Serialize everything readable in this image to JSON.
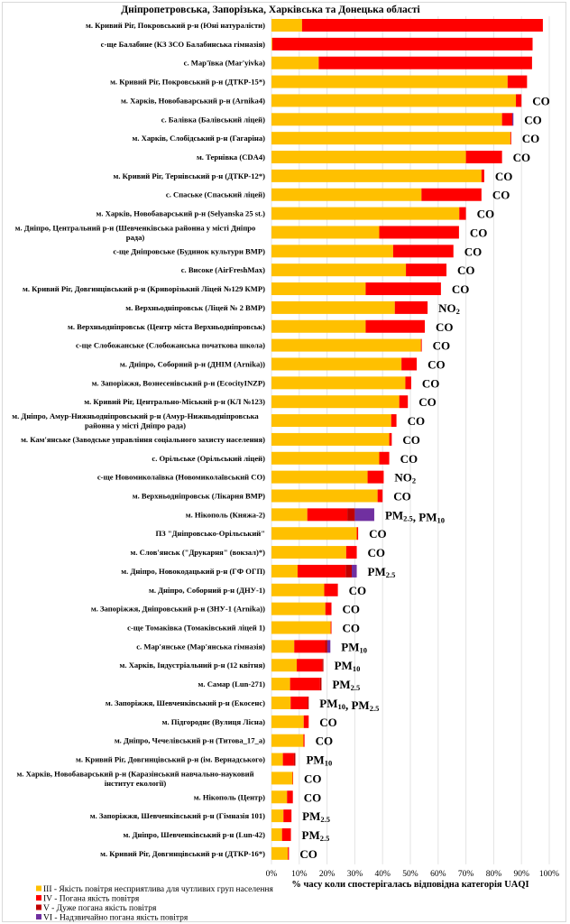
{
  "chart_data": {
    "type": "bar",
    "orientation": "horizontal",
    "stacked": true,
    "title": "Дніпропетровська, Запорізька, Харківська та Донецька області",
    "xlabel": "% часу коли спостерігалась відповідна категорія UAQI",
    "ylabel": "",
    "xlim": [
      0,
      100
    ],
    "x_ticks": [
      "0%",
      "10%",
      "20%",
      "30%",
      "40%",
      "50%",
      "60%",
      "70%",
      "80%",
      "90%",
      "100%"
    ],
    "grid": true,
    "legend_position": "bottom-left",
    "categories": [
      "м. Кривий Ріг, Покровський р-н (Юні натуралісти)",
      "с-ще Балабине (КЗ ЗСО Балабинська гімназія)",
      "с. Мар'ївка (Mar'yivka)",
      "м. Кривий Ріг, Покровський р-н (ДТКР-15*)",
      "м. Харків, Новобаварський р-н (Arnika4)",
      "с. Балівка (Балівський ліцей)",
      "м. Харків, Слобідський р-н (Гагаріна)",
      "м. Тернівка (CDA4)",
      "м. Кривий Ріг, Тернівський р-н (ДТКР-12*)",
      "с. Спаське (Спаський ліцей)",
      "м. Харків, Новобаварський р-н (Selyanska 25 st.)",
      "м. Дніпро, Центральний р-н (Шевченківська районна у місті Дніпро рада)",
      "с-ще Дніпровське (Будинок культури ВМР)",
      "с. Високе (AirFreshMax)",
      "м. Кривий Ріг, Довгинцівський р-н (Криворізький Ліцей №129 КМР)",
      "м. Верхньодніпровськ (Ліцей № 2 ВМР)",
      "м. Верхньодніпровськ (Центр міста Верхньодніпровськ)",
      "с-ще Слобожанське (Слобожанська початкова школа)",
      "м. Дніпро, Соборний р-н (ДНІМ (Arnika))",
      "м. Запоріжжя, Вознесенівський р-н (EcocityINZP)",
      "м. Кривий Ріг, Центрально-Міський р-н (КЛ №123)",
      "м. Дніпро, Амур-Нижньодніпровський р-н (Амур-Нижньодніпровська районна у місті Дніпро рада)",
      "м. Кам'янське (Заводське управління соціального захисту населення)",
      "с. Орільське (Орільський ліцей)",
      "с-ще Новомиколаївка (Новомиколаївський СО)",
      "м. Верхньодніпровськ (Лікарня ВМР)",
      "м. Нікополь (Княжа-2)",
      "ПЗ \"Дніпровсько-Орільський\"",
      "м. Слов'янськ (\"Друкарня\" (вокзал)*)",
      "м. Дніпро, Новокодацький р-н (ГФ ОГП)",
      "м. Дніпро, Соборний р-н (ДНУ-1)",
      "м. Запоріжжя, Дніпровський р-н (ЗНУ-1 (Arnika))",
      "с-ще Томаківка (Томаківський ліцей 1)",
      "с. Мар'янське (Мар'янська гімназія)",
      "м. Харків, Індустріальний р-н (12 квітня)",
      "м. Самар (Lun-271)",
      "м. Запоріжжя, Шевченківський р-н (Екосенс)",
      "м. Підгороднє (Вулиця Лісна)",
      "м. Дніпро, Чечелівський р-н (Титова_17_а)",
      "м. Кривий Ріг, Довгинцівський р-н (ім. Вернадського)",
      "м. Харків, Новобаварський р-н (Каразінський навчально-науковий інститут екології)",
      "м. Нікополь (Центр)",
      "м. Запоріжжя, Шевченківський р-н (Гімназія 101)",
      "м. Дніпро, Шевченківський р-н (Lun-42)",
      "м. Кривий Ріг, Довгинцівський р-н (ДТКР-16*)"
    ],
    "category_lines": [
      [
        "м. Кривий Ріг, Покровський р-н (Юні натуралісти)"
      ],
      [
        "с-ще Балабине (КЗ ЗСО Балабинська гімназія)"
      ],
      [
        "с. Мар'ївка (Mar'yivka)"
      ],
      [
        "м. Кривий Ріг, Покровський р-н (ДТКР-15*)"
      ],
      [
        "м. Харків, Новобаварський р-н (Arnika4)"
      ],
      [
        "с. Балівка (Балівський ліцей)"
      ],
      [
        "м. Харків, Слобідський р-н (Гагаріна)"
      ],
      [
        "м. Тернівка (CDA4)"
      ],
      [
        "м. Кривий Ріг, Тернівський р-н (ДТКР-12*)"
      ],
      [
        "с. Спаське (Спаський ліцей)"
      ],
      [
        "м. Харків, Новобаварський р-н (Selyanska 25 st.)"
      ],
      [
        "м. Дніпро, Центральний р-н (Шевченківська районна у місті Дніпро",
        "рада)"
      ],
      [
        "с-ще Дніпровське (Будинок культури ВМР)"
      ],
      [
        "с. Високе (AirFreshMax)"
      ],
      [
        "м. Кривий Ріг, Довгинцівський р-н (Криворізький Ліцей №129 КМР)"
      ],
      [
        "м. Верхньодніпровськ (Ліцей № 2 ВМР)"
      ],
      [
        "м. Верхньодніпровськ (Центр міста Верхньодніпровськ)"
      ],
      [
        "с-ще Слобожанське (Слобожанська початкова школа)"
      ],
      [
        "м. Дніпро, Соборний р-н (ДНІМ (Arnika))"
      ],
      [
        "м. Запоріжжя, Вознесенівський р-н (EcocityINZP)"
      ],
      [
        "м. Кривий Ріг, Центрально-Міський р-н (КЛ №123)"
      ],
      [
        "м. Дніпро, Амур-Нижньодніпровський р-н (Амур-Нижньодніпровська",
        "районна у місті Дніпро рада)"
      ],
      [
        "м. Кам'янське (Заводське управління соціального захисту населення)"
      ],
      [
        "с. Орільське (Орільський ліцей)"
      ],
      [
        "с-ще Новомиколаївка (Новомиколаївський СО)"
      ],
      [
        "м. Верхньодніпровськ (Лікарня ВМР)"
      ],
      [
        "м. Нікополь (Княжа-2)"
      ],
      [
        "ПЗ \"Дніпровсько-Орільський\""
      ],
      [
        "м. Слов'янськ (\"Друкарня\" (вокзал)*)"
      ],
      [
        "м. Дніпро, Новокодацький р-н (ГФ ОГП)"
      ],
      [
        "м. Дніпро, Соборний р-н (ДНУ-1)"
      ],
      [
        "м. Запоріжжя, Дніпровський р-н (ЗНУ-1 (Arnika))"
      ],
      [
        "с-ще Томаківка (Томаківський ліцей 1)"
      ],
      [
        "с. Мар'янське (Мар'янська гімназія)"
      ],
      [
        "м. Харків, Індустріальний р-н (12 квітня)"
      ],
      [
        "м. Самар (Lun-271)"
      ],
      [
        "м. Запоріжжя, Шевченківський р-н (Екосенс)"
      ],
      [
        "м. Підгороднє (Вулиця Лісна)"
      ],
      [
        "м. Дніпро, Чечелівський р-н (Титова_17_а)"
      ],
      [
        "м. Кривий Ріг, Довгинцівський р-н (ім. Вернадського)"
      ],
      [
        "м. Харків, Новобаварський р-н (Каразінський навчально-науковий",
        "інститут екології)"
      ],
      [
        "м. Нікополь (Центр)"
      ],
      [
        "м. Запоріжжя, Шевченківський р-н (Гімназія 101)"
      ],
      [
        "м. Дніпро, Шевченківський р-н (Lun-42)"
      ],
      [
        "м. Кривий Ріг, Довгинцівський р-н (ДТКР-16*)"
      ]
    ],
    "series": [
      {
        "name": "III - Якість повітря несприятлива  для чутливих  груп  населення",
        "color": "#FFC000",
        "values": [
          11,
          0.3,
          17,
          85,
          88,
          83,
          86,
          70,
          75.6,
          54,
          67.6,
          38.8,
          43.8,
          48.4,
          33.9,
          44.4,
          33.9,
          53.8,
          46.8,
          48.2,
          46,
          43.1,
          42.4,
          38.8,
          34.6,
          38.2,
          12.9,
          30.7,
          26.9,
          9.4,
          19,
          19.4,
          21.3,
          8.2,
          9.1,
          6.7,
          6.9,
          11.6,
          11.5,
          4.1,
          7.6,
          5.6,
          4.3,
          3.8,
          5.9
        ]
      },
      {
        "name": "IV - Погана якість повітря",
        "color": "#FF0000",
        "values": [
          86.7,
          93.7,
          76.8,
          7,
          2,
          3.7,
          0.3,
          13,
          1,
          21.6,
          2.4,
          28.7,
          21.7,
          14.6,
          27.1,
          11.8,
          21.3,
          0.3,
          5.5,
          2.1,
          3.1,
          1.9,
          0.9,
          3.6,
          5.8,
          1.8,
          14.4,
          0.5,
          3.8,
          17.3,
          4.9,
          2.2,
          0.3,
          11.1,
          9.2,
          10.8,
          6.1,
          1.8,
          0.4,
          4,
          0.2,
          2.1,
          2.9,
          3.2,
          0.4
        ]
      },
      {
        "name": "V - Дуже погана  якість повітря",
        "color": "#C00000",
        "values": [
          0,
          0,
          0,
          0,
          0,
          0,
          0,
          0,
          0,
          0,
          0,
          0,
          0,
          0,
          0,
          0,
          0,
          0,
          0,
          0,
          0,
          0,
          0,
          0,
          0,
          0,
          2.7,
          0,
          0,
          2.2,
          0,
          0,
          0,
          0.8,
          0.4,
          0.5,
          0.4,
          0,
          0,
          0.5,
          0,
          0,
          0,
          0,
          0
        ]
      },
      {
        "name": "VI - Надзвичайно  погана  якість повітря",
        "color": "#7030A0",
        "values": [
          0,
          0,
          0,
          0,
          0,
          0.4,
          0,
          0,
          0,
          0,
          0,
          0,
          0,
          0,
          0,
          0,
          0,
          0,
          0,
          0,
          0,
          0,
          0,
          0,
          0,
          0,
          7,
          0,
          0,
          1.8,
          0,
          0,
          0,
          1.1,
          0,
          0,
          0,
          0,
          0,
          0,
          0,
          0,
          0,
          0,
          0
        ]
      }
    ],
    "annotations": [
      "",
      "",
      "",
      "",
      "CO",
      "CO",
      "CO",
      "CO",
      "CO",
      "CO",
      "CO",
      "CO",
      "CO",
      "CO",
      "CO",
      "NO2",
      "CO",
      "CO",
      "CO",
      "CO",
      "CO",
      "CO",
      "CO",
      "CO",
      "NO2",
      "CO",
      "PM2.5, PM10",
      "CO",
      "CO",
      "PM2.5",
      "CO",
      "CO",
      "CO",
      "PM10",
      "PM10",
      "PM2.5",
      "PM10, PM2.5",
      "CO",
      "CO",
      "PM10",
      "CO",
      "CO",
      "PM2.5",
      "PM2.5",
      "CO"
    ]
  }
}
